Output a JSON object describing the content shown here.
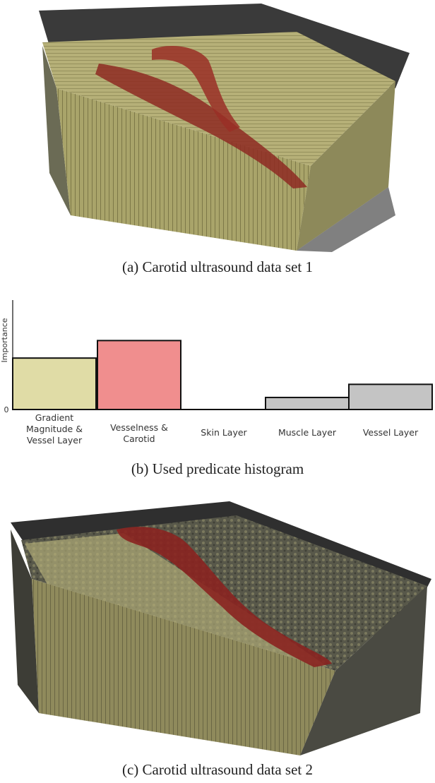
{
  "figure": {
    "caption_a": "(a) Carotid ultrasound data set 1",
    "caption_b": "(b) Used predicate histogram",
    "caption_c": "(c) Carotid ultrasound data set 2"
  },
  "chart_data": {
    "type": "bar",
    "title": "",
    "xlabel": "",
    "ylabel": "Importance",
    "ytick_label": "0",
    "ylim": [
      0,
      1.0
    ],
    "grid": false,
    "categories": [
      [
        "Gradient",
        "Magnitude &",
        "Vessel Layer"
      ],
      [
        "Vesselness &",
        "Carotid"
      ],
      [
        "Skin Layer"
      ],
      [
        "Muscle Layer"
      ],
      [
        "Vessel Layer"
      ]
    ],
    "values": [
      0.47,
      0.63,
      0.0,
      0.11,
      0.23
    ],
    "colors": [
      "#e0dca6",
      "#f08e8e",
      "#c4c4c4",
      "#c4c4c4",
      "#c4c4c4"
    ]
  }
}
